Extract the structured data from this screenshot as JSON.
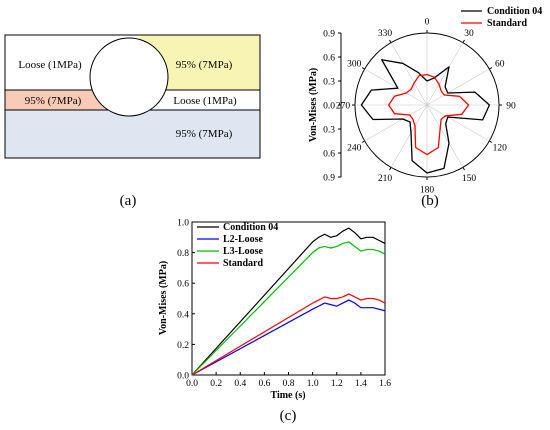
{
  "panels": {
    "a": {
      "label": "(a)"
    },
    "b": {
      "label": "(b)"
    },
    "c": {
      "label": "(c)"
    }
  },
  "schematic": {
    "regions": [
      {
        "name": "loose-top-left",
        "text": "Loose (1MPa)",
        "fill": "#ffffff"
      },
      {
        "name": "compact-top-right",
        "text": "95% (7MPa)",
        "fill": "#f8f4b4"
      },
      {
        "name": "compact-middle-left",
        "text": "95% (7MPa)",
        "fill": "#f8cbb6"
      },
      {
        "name": "loose-middle-right",
        "text": "Loose (1MPa)",
        "fill": "#ffffff"
      },
      {
        "name": "compact-bottom",
        "text": "95% (7MPa)",
        "fill": "#dde6f1"
      }
    ]
  },
  "chart_data": [
    {
      "type": "polar-line",
      "ylabel": "Von-Mises (MPa)",
      "r_ticks": [
        "0.9",
        "0.6",
        "0.3",
        "0.0",
        "0.3",
        "0.6",
        "0.9"
      ],
      "r_range": [
        0,
        0.9
      ],
      "angle_ticks": [
        "0",
        "30",
        "60",
        "90",
        "120",
        "150",
        "180",
        "210",
        "240",
        "270",
        "300",
        "330"
      ],
      "angles": [
        0,
        15,
        30,
        45,
        60,
        75,
        90,
        105,
        120,
        135,
        150,
        165,
        180,
        195,
        210,
        225,
        240,
        255,
        270,
        285,
        300,
        315,
        330,
        345
      ],
      "legend_position": "top-right",
      "series": [
        {
          "name": "Condition 04",
          "color": "#000000",
          "values": [
            0.3,
            0.35,
            0.55,
            0.32,
            0.3,
            0.62,
            0.78,
            0.72,
            0.3,
            0.33,
            0.55,
            0.82,
            0.85,
            0.72,
            0.4,
            0.3,
            0.35,
            0.7,
            0.82,
            0.72,
            0.42,
            0.8,
            0.6,
            0.42
          ]
        },
        {
          "name": "Standard",
          "color": "#ff0000",
          "values": [
            0.38,
            0.36,
            0.3,
            0.25,
            0.25,
            0.42,
            0.52,
            0.45,
            0.27,
            0.25,
            0.33,
            0.55,
            0.62,
            0.55,
            0.3,
            0.25,
            0.25,
            0.42,
            0.48,
            0.42,
            0.3,
            0.28,
            0.32,
            0.38
          ]
        }
      ]
    },
    {
      "type": "line",
      "xlabel": "Time (s)",
      "ylabel": "Von-Mises (MPa)",
      "xlim": [
        0.0,
        1.6
      ],
      "ylim": [
        0.0,
        1.0
      ],
      "x_ticks": [
        "0.0",
        "0.2",
        "0.4",
        "0.6",
        "0.8",
        "1.0",
        "1.2",
        "1.4",
        "1.6"
      ],
      "y_ticks": [
        "0.0",
        "0.2",
        "0.4",
        "0.6",
        "0.8",
        "1.0"
      ],
      "legend_position": "top-left",
      "x": [
        0.0,
        1.0,
        1.05,
        1.1,
        1.15,
        1.2,
        1.25,
        1.3,
        1.35,
        1.4,
        1.45,
        1.5,
        1.55,
        1.6
      ],
      "series": [
        {
          "name": "Condition 04",
          "color": "#000000",
          "values": [
            0.0,
            0.87,
            0.9,
            0.92,
            0.9,
            0.91,
            0.94,
            0.96,
            0.93,
            0.89,
            0.9,
            0.9,
            0.88,
            0.86
          ]
        },
        {
          "name": "L2-Loose",
          "color": "#0000ff",
          "values": [
            0.0,
            0.43,
            0.45,
            0.47,
            0.46,
            0.45,
            0.47,
            0.49,
            0.47,
            0.44,
            0.44,
            0.44,
            0.43,
            0.42
          ]
        },
        {
          "name": "L3-Loose",
          "color": "#00bb00",
          "values": [
            0.0,
            0.8,
            0.83,
            0.84,
            0.83,
            0.84,
            0.86,
            0.87,
            0.84,
            0.81,
            0.82,
            0.82,
            0.81,
            0.79
          ]
        },
        {
          "name": "Standard",
          "color": "#ff0000",
          "values": [
            0.0,
            0.47,
            0.49,
            0.51,
            0.5,
            0.5,
            0.51,
            0.53,
            0.51,
            0.49,
            0.5,
            0.5,
            0.49,
            0.47
          ]
        }
      ]
    }
  ]
}
